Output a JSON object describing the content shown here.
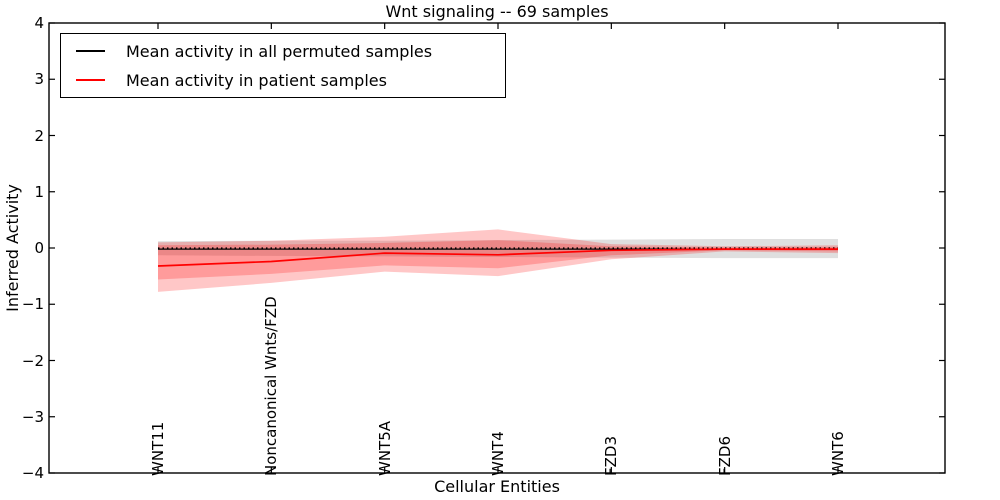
{
  "figure": {
    "title": "Wnt signaling -- 69 samples",
    "xlabel": "Cellular Entities",
    "ylabel": "Inferred Activity",
    "background_color": "#ffffff",
    "spine_color": "#000000"
  },
  "legend": {
    "entries": [
      {
        "label": "Mean activity in all permuted samples",
        "color": "#000000"
      },
      {
        "label": "Mean activity in patient samples",
        "color": "#ff0000"
      }
    ]
  },
  "chart_data": {
    "type": "line",
    "title": "Wnt signaling -- 69 samples",
    "xlabel": "Cellular Entities",
    "ylabel": "Inferred Activity",
    "categories": [
      "WNT11",
      "Noncanonical Wnts/FZD",
      "WNT5A",
      "WNT4",
      "FZD3",
      "FZD6",
      "WNT6"
    ],
    "ylim": [
      -4,
      4
    ],
    "yticks": {
      "values": [
        4,
        3,
        2,
        1,
        0,
        -1,
        -2,
        -3,
        -4
      ],
      "labels": [
        "4",
        "3",
        "2",
        "1",
        "0",
        "−1",
        "−2",
        "−3",
        "−4"
      ]
    },
    "grid": false,
    "legend_position": "upper left",
    "zero_line": {
      "y": 0,
      "style": "dotted",
      "color": "#000000"
    },
    "series": [
      {
        "name": "Mean activity in all permuted samples",
        "color": "#000000",
        "line_width": 1.3,
        "values": [
          -0.02,
          -0.02,
          -0.02,
          -0.02,
          -0.02,
          -0.02,
          -0.02
        ]
      },
      {
        "name": "Mean activity in patient samples",
        "color": "#ff0000",
        "line_width": 1.7,
        "values": [
          -0.32,
          -0.24,
          -0.09,
          -0.12,
          -0.04,
          -0.02,
          -0.02
        ]
      }
    ],
    "bands": [
      {
        "name": "permuted-samples-band",
        "color": "rgba(128,128,128,0.25)",
        "upper": [
          0.12,
          0.13,
          0.13,
          0.14,
          0.15,
          0.16,
          0.16
        ],
        "lower": [
          -0.13,
          -0.14,
          -0.15,
          -0.16,
          -0.17,
          -0.18,
          -0.18
        ]
      },
      {
        "name": "patient-samples-band-outer",
        "color": "rgba(255,0,0,0.22)",
        "upper": [
          0.1,
          0.13,
          0.2,
          0.33,
          0.07,
          0.03,
          0.05
        ],
        "lower": [
          -0.78,
          -0.62,
          -0.42,
          -0.5,
          -0.2,
          -0.06,
          -0.09
        ]
      },
      {
        "name": "patient-samples-band-inner",
        "color": "rgba(255,0,0,0.22)",
        "upper": [
          0.05,
          0.06,
          0.09,
          0.14,
          0.03,
          0.01,
          0.02
        ],
        "lower": [
          -0.56,
          -0.46,
          -0.31,
          -0.36,
          -0.13,
          -0.04,
          -0.06
        ]
      }
    ]
  }
}
